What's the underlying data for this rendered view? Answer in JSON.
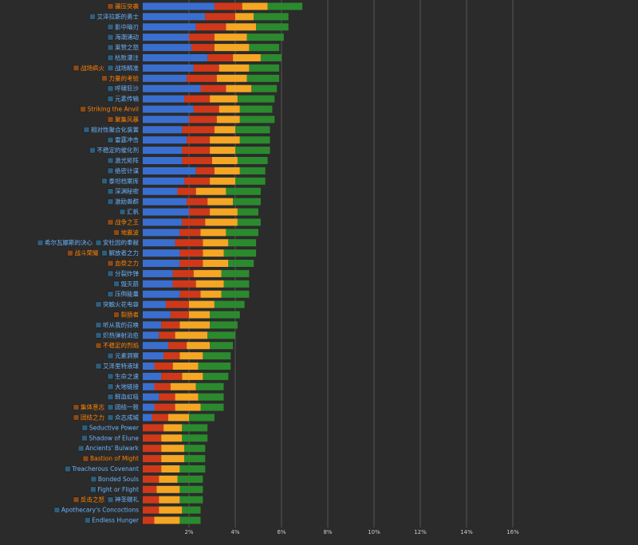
{
  "chart_data": {
    "type": "bar",
    "orientation": "horizontal",
    "stacked": true,
    "xlim": [
      0,
      16
    ],
    "x_ticks": [
      2,
      4,
      6,
      8,
      10,
      12,
      14,
      16
    ],
    "x_tick_labels": [
      "2%",
      "4%",
      "6%",
      "8%",
      "10%",
      "12%",
      "14%",
      "16%"
    ],
    "grid": true,
    "colors": {
      "background": "#2b2b2b",
      "grid": "#555555",
      "tick_text": "#cccccc",
      "label_blue": "#69b4ff",
      "label_orange": "#ff8000",
      "series": [
        "#3a6fd0",
        "#d0381a",
        "#f5a623",
        "#2b8a2e"
      ]
    },
    "rows": [
      {
        "labels": [
          {
            "text": "碾压突袭",
            "color": "orange"
          }
        ],
        "values": [
          3.1,
          1.2,
          1.1,
          1.5
        ]
      },
      {
        "labels": [
          {
            "text": "艾泽拉斯的勇士",
            "color": "blue"
          }
        ],
        "values": [
          2.7,
          1.3,
          0.8,
          1.5
        ]
      },
      {
        "labels": [
          {
            "text": "影中暗刃",
            "color": "blue"
          }
        ],
        "values": [
          2.3,
          1.3,
          1.3,
          1.4
        ]
      },
      {
        "labels": [
          {
            "text": "海潮涌动",
            "color": "blue"
          }
        ],
        "values": [
          2.0,
          1.1,
          1.4,
          1.6
        ]
      },
      {
        "labels": [
          {
            "text": "莱赞之怒",
            "color": "blue"
          }
        ],
        "values": [
          2.1,
          1.0,
          1.5,
          1.3
        ]
      },
      {
        "labels": [
          {
            "text": "枯败灌注",
            "color": "blue"
          }
        ],
        "values": [
          2.8,
          1.1,
          1.2,
          0.9
        ]
      },
      {
        "labels": [
          {
            "text": "战场疯火",
            "color": "orange"
          },
          {
            "text": "战场精准",
            "color": "blue"
          }
        ],
        "values": [
          2.2,
          1.1,
          1.3,
          1.3
        ]
      },
      {
        "labels": [
          {
            "text": "力量的考验",
            "color": "orange"
          }
        ],
        "values": [
          1.9,
          1.3,
          1.3,
          1.4
        ]
      },
      {
        "labels": [
          {
            "text": "呼啸狂沙",
            "color": "blue"
          }
        ],
        "values": [
          2.5,
          1.1,
          1.1,
          1.1
        ]
      },
      {
        "labels": [
          {
            "text": "元素传输",
            "color": "blue"
          }
        ],
        "values": [
          1.8,
          1.1,
          1.2,
          1.6
        ]
      },
      {
        "labels": [
          {
            "text": "Striking the Anvil",
            "color": "orange"
          }
        ],
        "values": [
          2.2,
          1.1,
          0.9,
          1.4
        ]
      },
      {
        "labels": [
          {
            "text": "聚集风暴",
            "color": "orange"
          }
        ],
        "values": [
          2.0,
          1.2,
          1.0,
          1.5
        ]
      },
      {
        "labels": [
          {
            "text": "相对性聚合化装置",
            "color": "blue"
          }
        ],
        "values": [
          1.7,
          1.4,
          0.9,
          1.5
        ]
      },
      {
        "labels": [
          {
            "text": "雷霆冲击",
            "color": "blue"
          }
        ],
        "values": [
          1.9,
          1.0,
          1.3,
          1.3
        ]
      },
      {
        "labels": [
          {
            "text": "不稳定的催化剂",
            "color": "blue"
          }
        ],
        "values": [
          1.7,
          1.2,
          1.1,
          1.5
        ]
      },
      {
        "labels": [
          {
            "text": "激光矩阵",
            "color": "blue"
          }
        ],
        "values": [
          1.7,
          1.3,
          1.1,
          1.3
        ]
      },
      {
        "labels": [
          {
            "text": "绝密计谋",
            "color": "blue"
          }
        ],
        "values": [
          2.3,
          0.8,
          1.1,
          1.1
        ]
      },
      {
        "labels": [
          {
            "text": "泰坦档案库",
            "color": "blue"
          }
        ],
        "values": [
          1.8,
          1.1,
          1.1,
          1.3
        ]
      },
      {
        "labels": [
          {
            "text": "深渊秘密",
            "color": "blue"
          }
        ],
        "values": [
          1.5,
          0.8,
          1.3,
          1.5
        ]
      },
      {
        "labels": [
          {
            "text": "激励兽群",
            "color": "blue"
          }
        ],
        "values": [
          1.9,
          0.9,
          1.1,
          1.2
        ]
      },
      {
        "labels": [
          {
            "text": "汇帆",
            "color": "blue"
          }
        ],
        "values": [
          2.0,
          0.9,
          1.2,
          0.9
        ]
      },
      {
        "labels": [
          {
            "text": "战争之王",
            "color": "orange"
          }
        ],
        "values": [
          1.7,
          1.0,
          1.4,
          1.0
        ]
      },
      {
        "labels": [
          {
            "text": "地震波",
            "color": "orange"
          }
        ],
        "values": [
          1.6,
          0.9,
          1.1,
          1.4
        ]
      },
      {
        "labels": [
          {
            "text": "希尔瓦娜斯的决心",
            "color": "blue"
          },
          {
            "text": "安杜因的奉献",
            "color": "blue"
          }
        ],
        "values": [
          1.4,
          1.2,
          1.1,
          1.2
        ]
      },
      {
        "labels": [
          {
            "text": "战斗荣耀",
            "color": "orange"
          },
          {
            "text": "解放者之力",
            "color": "blue"
          }
        ],
        "values": [
          1.6,
          1.0,
          0.9,
          1.4
        ]
      },
      {
        "labels": [
          {
            "text": "血祭之力",
            "color": "orange"
          }
        ],
        "values": [
          1.6,
          1.0,
          1.1,
          1.1
        ]
      },
      {
        "labels": [
          {
            "text": "分裂炸弹",
            "color": "blue"
          }
        ],
        "values": [
          1.3,
          0.9,
          1.2,
          1.2
        ]
      },
      {
        "labels": [
          {
            "text": "毁灭箭",
            "color": "blue"
          }
        ],
        "values": [
          1.3,
          1.0,
          1.2,
          1.1
        ]
      },
      {
        "labels": [
          {
            "text": "压倒能量",
            "color": "blue"
          }
        ],
        "values": [
          1.6,
          0.9,
          0.9,
          1.2
        ]
      },
      {
        "labels": [
          {
            "text": "突触火花电容",
            "color": "blue"
          }
        ],
        "values": [
          1.0,
          1.0,
          1.1,
          1.3
        ]
      },
      {
        "labels": [
          {
            "text": "裂肠者",
            "color": "orange"
          }
        ],
        "values": [
          1.2,
          0.8,
          0.9,
          1.3
        ]
      },
      {
        "labels": [
          {
            "text": "听从我的召唤",
            "color": "blue"
          }
        ],
        "values": [
          0.8,
          0.8,
          1.3,
          1.2
        ]
      },
      {
        "labels": [
          {
            "text": "炽热弹射治愈",
            "color": "blue"
          }
        ],
        "values": [
          0.7,
          0.7,
          1.4,
          1.2
        ]
      },
      {
        "labels": [
          {
            "text": "不稳定的烈焰",
            "color": "orange"
          }
        ],
        "values": [
          1.1,
          0.8,
          1.0,
          1.0
        ]
      },
      {
        "labels": [
          {
            "text": "元素洞察",
            "color": "blue"
          }
        ],
        "values": [
          0.9,
          0.7,
          1.0,
          1.2
        ]
      },
      {
        "labels": [
          {
            "text": "艾泽里特液球",
            "color": "blue"
          }
        ],
        "values": [
          0.5,
          0.8,
          1.1,
          1.4
        ]
      },
      {
        "labels": [
          {
            "text": "生命之速",
            "color": "blue"
          }
        ],
        "values": [
          0.8,
          0.9,
          0.9,
          1.1
        ]
      },
      {
        "labels": [
          {
            "text": "大地链接",
            "color": "blue"
          }
        ],
        "values": [
          0.5,
          0.7,
          1.1,
          1.2
        ]
      },
      {
        "labels": [
          {
            "text": "鲜血虹吸",
            "color": "blue"
          }
        ],
        "values": [
          0.7,
          0.7,
          1.0,
          1.1
        ]
      },
      {
        "labels": [
          {
            "text": "集体意志",
            "color": "orange"
          },
          {
            "text": "团结一致",
            "color": "blue"
          }
        ],
        "values": [
          0.5,
          0.9,
          1.1,
          1.0
        ]
      },
      {
        "labels": [
          {
            "text": "团结之力",
            "color": "orange"
          },
          {
            "text": "众志成城",
            "color": "blue"
          }
        ],
        "values": [
          0.4,
          0.7,
          0.9,
          1.1
        ]
      },
      {
        "labels": [
          {
            "text": "Seductive Power",
            "color": "blue"
          }
        ],
        "values": [
          0,
          0.9,
          0.8,
          1.1
        ]
      },
      {
        "labels": [
          {
            "text": "Shadow of Elune",
            "color": "blue"
          }
        ],
        "values": [
          0,
          0.8,
          0.9,
          1.1
        ]
      },
      {
        "labels": [
          {
            "text": "Ancients' Bulwark",
            "color": "blue"
          }
        ],
        "values": [
          0,
          0.8,
          1.0,
          0.9
        ]
      },
      {
        "labels": [
          {
            "text": "Bastion of Might",
            "color": "orange"
          }
        ],
        "values": [
          0,
          0.8,
          1.0,
          0.9
        ]
      },
      {
        "labels": [
          {
            "text": "Treacherous Covenant",
            "color": "blue"
          }
        ],
        "values": [
          0,
          0.8,
          0.8,
          1.1
        ]
      },
      {
        "labels": [
          {
            "text": "Bonded Souls",
            "color": "blue"
          }
        ],
        "values": [
          0,
          0.7,
          0.8,
          1.1
        ]
      },
      {
        "labels": [
          {
            "text": "Fight or Flight",
            "color": "blue"
          }
        ],
        "values": [
          0,
          0.6,
          1.0,
          1.0
        ]
      },
      {
        "labels": [
          {
            "text": "反击之怒",
            "color": "orange"
          },
          {
            "text": "神圣赠礼",
            "color": "blue"
          }
        ],
        "values": [
          0,
          0.7,
          0.9,
          1.0
        ]
      },
      {
        "labels": [
          {
            "text": "Apothecary's Concoctions",
            "color": "blue"
          }
        ],
        "values": [
          0,
          0.7,
          1.0,
          0.8
        ]
      },
      {
        "labels": [
          {
            "text": "Endless Hunger",
            "color": "blue"
          }
        ],
        "values": [
          0,
          0.5,
          1.1,
          0.9
        ]
      }
    ]
  }
}
